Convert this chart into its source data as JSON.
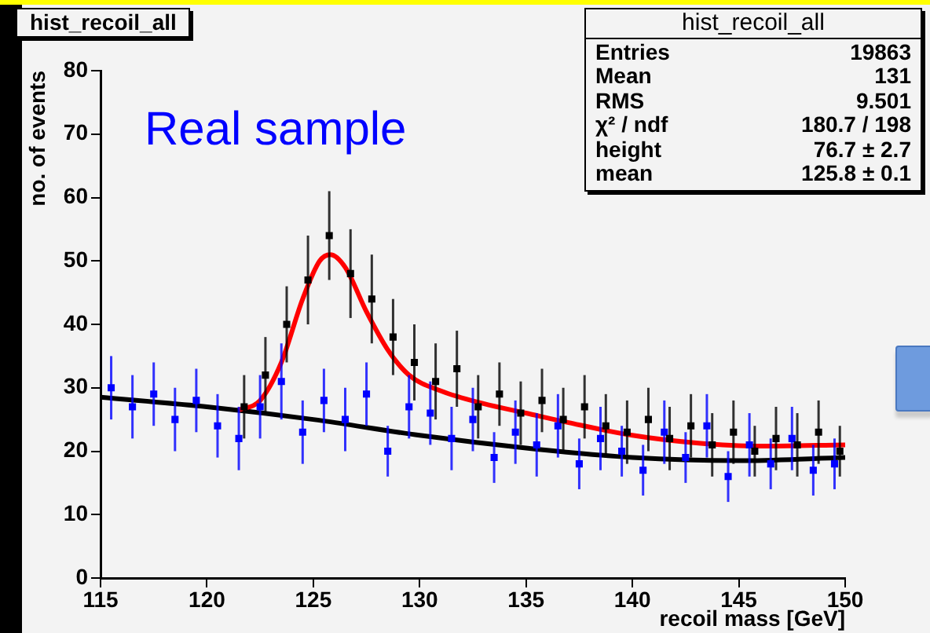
{
  "chart_data": {
    "type": "scatter",
    "title": "hist_recoil_all",
    "xlabel": "recoil mass [GeV]",
    "ylabel": "no. of events",
    "xlim": [
      115,
      150
    ],
    "xticks": [
      115,
      120,
      125,
      130,
      135,
      140,
      145,
      150
    ],
    "ylim": [
      0,
      80
    ],
    "yticks": [
      0,
      10,
      20,
      30,
      40,
      50,
      60,
      70,
      80
    ],
    "legend": false,
    "annotations": [
      "Real sample",
      "hist_recoil_all",
      "Entries",
      "19863",
      "Mean",
      "131",
      "RMS",
      "9.501",
      "χ² / ndf",
      "180.7 / 198",
      "height",
      "76.7 ± 2.7",
      "mean",
      "125.8 ± 0.1"
    ],
    "series": [
      {
        "color": "#000000",
        "marker": "square",
        "x": [
          121.75,
          122.75,
          123.75,
          124.75,
          125.75,
          126.75,
          127.75,
          128.75,
          129.75,
          130.75,
          131.75,
          132.75,
          133.75,
          134.75,
          135.75,
          136.75,
          137.75,
          138.75,
          139.75,
          140.75,
          141.75,
          142.75,
          143.75,
          144.75,
          145.75,
          146.75,
          147.75,
          148.75,
          149.75
        ],
        "values": [
          27,
          32,
          40,
          47,
          54,
          48,
          44,
          38,
          34,
          31,
          33,
          27,
          29,
          26,
          28,
          25,
          27,
          24,
          23,
          25,
          22,
          24,
          21,
          23,
          20,
          22,
          21,
          23,
          20
        ],
        "errors": [
          5,
          6,
          6,
          7,
          7,
          7,
          7,
          6,
          6,
          6,
          6,
          5,
          5,
          5,
          5,
          5,
          5,
          5,
          5,
          5,
          5,
          5,
          5,
          5,
          4,
          5,
          5,
          5,
          4
        ]
      },
      {
        "color": "#0000ff",
        "marker": "square",
        "x": [
          115.5,
          116.5,
          117.5,
          118.5,
          119.5,
          120.5,
          121.5,
          122.5,
          123.5,
          124.5,
          125.5,
          126.5,
          127.5,
          128.5,
          129.5,
          130.5,
          131.5,
          132.5,
          133.5,
          134.5,
          135.5,
          136.5,
          137.5,
          138.5,
          139.5,
          140.5,
          141.5,
          142.5,
          143.5,
          144.5,
          145.5,
          146.5,
          147.5,
          148.5,
          149.5
        ],
        "values": [
          30,
          27,
          29,
          25,
          28,
          24,
          22,
          27,
          31,
          23,
          28,
          25,
          29,
          20,
          27,
          26,
          22,
          25,
          19,
          23,
          21,
          24,
          18,
          22,
          20,
          17,
          23,
          19,
          24,
          16,
          21,
          18,
          22,
          17,
          18
        ],
        "errors": [
          5,
          5,
          5,
          5,
          5,
          5,
          5,
          5,
          6,
          5,
          5,
          5,
          5,
          4,
          5,
          5,
          5,
          5,
          4,
          5,
          5,
          5,
          4,
          5,
          4,
          4,
          5,
          4,
          5,
          4,
          5,
          4,
          5,
          4,
          4
        ]
      },
      {
        "type": "line",
        "marker": "none",
        "color": "#ff0000",
        "x": [
          121.5,
          122.5,
          123.5,
          124.5,
          125.3,
          125.8,
          126.5,
          127.5,
          128.5,
          129.5,
          131,
          133,
          135,
          137,
          140,
          143,
          146,
          150
        ],
        "values": [
          26.5,
          28,
          34,
          44,
          50,
          51,
          49,
          42,
          36,
          32,
          29.5,
          27.5,
          26,
          24.5,
          22.5,
          21.3,
          20.8,
          21
        ]
      },
      {
        "type": "line",
        "marker": "none",
        "color": "#000000",
        "x": [
          115,
          120,
          125,
          130,
          135,
          140,
          145,
          150
        ],
        "values": [
          28.5,
          27,
          25,
          22.5,
          20.5,
          19,
          18.5,
          19
        ]
      }
    ]
  }
}
